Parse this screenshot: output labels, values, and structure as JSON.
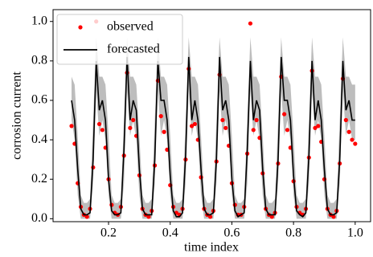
{
  "chart_data": {
    "type": "line",
    "xlabel": "time index",
    "ylabel": "corrosion current",
    "xlim": [
      0.02,
      1.05
    ],
    "ylim": [
      -0.015,
      1.06
    ],
    "xticks": [
      0.2,
      0.4,
      0.6,
      0.8,
      {
        "value": 1,
        "label": "1.0"
      }
    ],
    "yticks": [
      {
        "value": 0,
        "label": "0.0"
      },
      0.2,
      0.4,
      0.6,
      0.8,
      {
        "value": 1,
        "label": "1.0"
      }
    ],
    "legend": "upper left",
    "x": [
      0.08,
      0.09,
      0.1,
      0.11,
      0.12,
      0.13,
      0.14,
      0.15,
      0.16,
      0.17,
      0.18,
      0.19,
      0.2,
      0.21,
      0.22,
      0.23,
      0.24,
      0.25,
      0.26,
      0.27,
      0.28,
      0.29,
      0.3,
      0.31,
      0.32,
      0.33,
      0.34,
      0.35,
      0.36,
      0.37,
      0.38,
      0.39,
      0.4,
      0.41,
      0.42,
      0.43,
      0.44,
      0.45,
      0.46,
      0.47,
      0.48,
      0.49,
      0.5,
      0.51,
      0.52,
      0.53,
      0.54,
      0.55,
      0.56,
      0.57,
      0.58,
      0.59,
      0.6,
      0.61,
      0.62,
      0.63,
      0.64,
      0.65,
      0.66,
      0.67,
      0.68,
      0.69,
      0.7,
      0.71,
      0.72,
      0.73,
      0.74,
      0.75,
      0.76,
      0.77,
      0.78,
      0.79,
      0.8,
      0.81,
      0.82,
      0.83,
      0.84,
      0.85,
      0.86,
      0.87,
      0.88,
      0.89,
      0.9,
      0.91,
      0.92,
      0.93,
      0.94,
      0.95,
      0.96,
      0.97,
      0.98,
      0.99,
      1.0
    ],
    "band": {
      "color": "#bdbdbd",
      "lower": [
        0.5,
        0.4,
        0.12,
        0,
        0,
        0,
        0,
        0.18,
        0.65,
        0.42,
        0.5,
        0.4,
        0.12,
        0,
        0,
        0,
        0,
        0.18,
        0.65,
        0.42,
        0.5,
        0.4,
        0.12,
        0,
        0,
        0,
        0,
        0.18,
        0.65,
        0.42,
        0.5,
        0.4,
        0.12,
        0,
        0,
        0,
        0,
        0.18,
        0.65,
        0.42,
        0.5,
        0.4,
        0.12,
        0,
        0,
        0,
        0,
        0.18,
        0.65,
        0.42,
        0.5,
        0.4,
        0.12,
        0,
        0,
        0,
        0,
        0.18,
        0.65,
        0.42,
        0.5,
        0.4,
        0.12,
        0,
        0,
        0,
        0,
        0.18,
        0.65,
        0.42,
        0.5,
        0.4,
        0.12,
        0,
        0,
        0,
        0,
        0.18,
        0.65,
        0.42,
        0.5,
        0.4,
        0.12,
        0,
        0,
        0,
        0,
        0.18,
        0.65,
        0.42,
        0.5,
        0.4,
        0.4
      ],
      "upper": [
        0.72,
        0.68,
        0.42,
        0.12,
        0.08,
        0.08,
        0.1,
        0.5,
        0.92,
        0.72,
        0.72,
        0.68,
        0.42,
        0.12,
        0.08,
        0.08,
        0.1,
        0.5,
        0.92,
        0.72,
        0.72,
        0.68,
        0.42,
        0.12,
        0.08,
        0.08,
        0.1,
        0.5,
        0.92,
        0.72,
        0.72,
        0.68,
        0.42,
        0.12,
        0.08,
        0.08,
        0.1,
        0.5,
        0.92,
        0.72,
        0.72,
        0.68,
        0.42,
        0.12,
        0.08,
        0.08,
        0.1,
        0.5,
        0.92,
        0.72,
        0.72,
        0.68,
        0.42,
        0.12,
        0.08,
        0.08,
        0.1,
        0.5,
        0.92,
        0.72,
        0.72,
        0.68,
        0.42,
        0.12,
        0.08,
        0.08,
        0.1,
        0.5,
        0.92,
        0.72,
        0.72,
        0.68,
        0.42,
        0.12,
        0.08,
        0.08,
        0.1,
        0.5,
        0.92,
        0.72,
        0.72,
        0.68,
        0.42,
        0.12,
        0.08,
        0.08,
        0.1,
        0.5,
        0.92,
        0.72,
        0.72,
        0.68,
        0.68
      ]
    },
    "series": [
      {
        "name": "observed",
        "color": "#ff0000",
        "style": "scatter",
        "values": [
          0.47,
          0.38,
          0.18,
          0.06,
          0.02,
          0.01,
          0.05,
          0.26,
          1.0,
          0.48,
          0.45,
          0.36,
          0.2,
          0.07,
          0.03,
          0.02,
          0.06,
          0.32,
          0.74,
          0.46,
          0.5,
          0.42,
          0.22,
          0.05,
          0.02,
          0.01,
          0.04,
          0.27,
          0.7,
          0.52,
          0.44,
          0.35,
          0.17,
          0.06,
          0.03,
          0.02,
          0.05,
          0.3,
          0.76,
          0.47,
          0.48,
          0.4,
          0.21,
          0.05,
          0.02,
          0.01,
          0.04,
          0.29,
          0.73,
          0.5,
          0.46,
          0.37,
          0.18,
          0.07,
          0.02,
          0.02,
          0.06,
          0.33,
          0.99,
          0.45,
          0.5,
          0.41,
          0.23,
          0.05,
          0.02,
          0.01,
          0.03,
          0.28,
          0.72,
          0.53,
          0.45,
          0.36,
          0.19,
          0.06,
          0.03,
          0.02,
          0.05,
          0.31,
          0.75,
          0.46,
          0.47,
          0.39,
          0.2,
          0.05,
          0.02,
          0.01,
          0.04,
          0.28,
          0.71,
          0.5,
          0.44,
          0.4,
          0.38
        ]
      },
      {
        "name": "forecasted",
        "color": "#000000",
        "style": "line",
        "values": [
          0.6,
          0.5,
          0.25,
          0.05,
          0.02,
          0.02,
          0.03,
          0.3,
          0.8,
          0.55,
          0.6,
          0.5,
          0.2,
          0.04,
          0.02,
          0.02,
          0.03,
          0.35,
          0.82,
          0.5,
          0.6,
          0.55,
          0.25,
          0.05,
          0.02,
          0.02,
          0.02,
          0.3,
          0.8,
          0.6,
          0.6,
          0.5,
          0.22,
          0.04,
          0.01,
          0.01,
          0.03,
          0.32,
          0.82,
          0.5,
          0.6,
          0.5,
          0.25,
          0.05,
          0.02,
          0.02,
          0.03,
          0.3,
          0.82,
          0.55,
          0.6,
          0.5,
          0.2,
          0.04,
          0.01,
          0.02,
          0.03,
          0.35,
          0.8,
          0.5,
          0.6,
          0.55,
          0.25,
          0.05,
          0.02,
          0.02,
          0.02,
          0.3,
          0.82,
          0.6,
          0.6,
          0.5,
          0.22,
          0.04,
          0.02,
          0.01,
          0.03,
          0.32,
          0.8,
          0.5,
          0.6,
          0.5,
          0.25,
          0.05,
          0.02,
          0.02,
          0.03,
          0.3,
          0.8,
          0.55,
          0.6,
          0.5,
          0.5
        ]
      }
    ]
  }
}
